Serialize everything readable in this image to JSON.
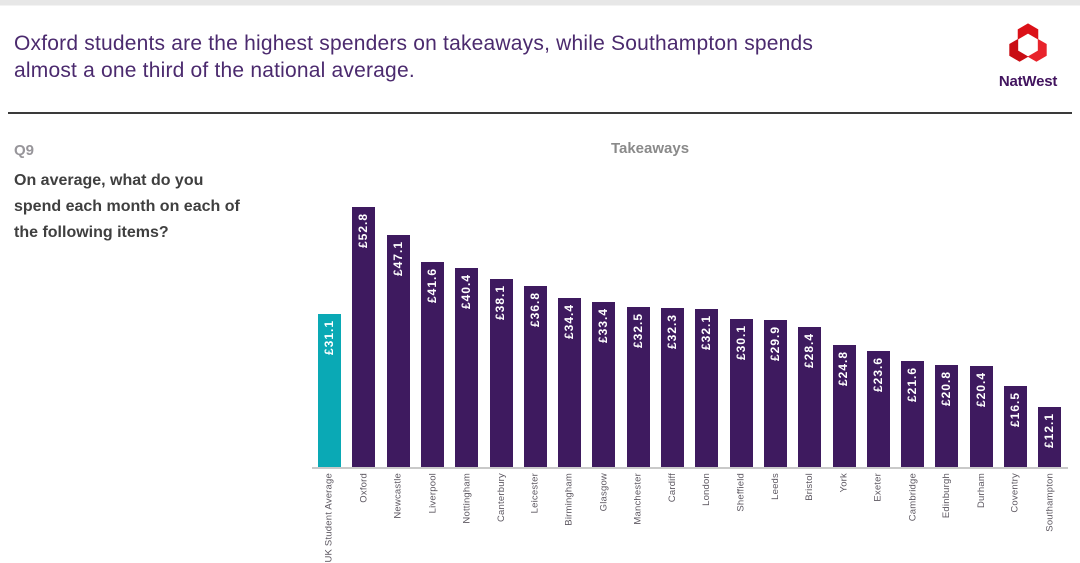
{
  "header": {
    "title_lines": [
      "Oxford students are the highest spenders on takeaways, while Southampton spends",
      "almost a one third of the national average."
    ],
    "brand": "NatWest"
  },
  "question": {
    "number": "Q9",
    "text": "On average, what do you spend each month on each of the following items?"
  },
  "chart_data": {
    "type": "bar",
    "title": "Takeaways",
    "categories": [
      "UK Student Average",
      "Oxford",
      "Newcastle",
      "Liverpool",
      "Nottingham",
      "Canterbury",
      "Leicester",
      "Birmingham",
      "Glasgow",
      "Manchester",
      "Cardiff",
      "London",
      "Sheffield",
      "Leeds",
      "Bristol",
      "York",
      "Exeter",
      "Cambridge",
      "Edinburgh",
      "Durham",
      "Coventry",
      "Southampton"
    ],
    "values": [
      31.1,
      52.8,
      47.1,
      41.6,
      40.4,
      38.1,
      36.8,
      34.4,
      33.4,
      32.5,
      32.3,
      32.1,
      30.1,
      29.9,
      28.4,
      24.8,
      23.6,
      21.6,
      20.8,
      20.4,
      16.5,
      12.1
    ],
    "value_prefix": "£",
    "value_labels": [
      "£31.1",
      "£52.8",
      "£47.1",
      "£41.6",
      "£40.4",
      "£38.1",
      "£36.8",
      "£34.4",
      "£33.4",
      "£32.5",
      "£32.3",
      "£32.1",
      "£30.1",
      "£29.9",
      "£28.4",
      "£24.8",
      "£23.6",
      "£21.6",
      "£20.8",
      "£20.4",
      "£16.5",
      "£12.1"
    ],
    "highlight_index": 0,
    "bar_color": "#3e1a5f",
    "highlight_color": "#0aa9b5",
    "ylim": [
      0,
      55
    ],
    "grid": false,
    "xlabel": "",
    "ylabel": "",
    "legend": null,
    "tick_label_rotation": 90
  },
  "colors": {
    "title_text": "#4b2a6e",
    "brand_text": "#42145f",
    "logo_red": "#db1118",
    "divider": "#3a3a3a",
    "question_number": "#97959a",
    "question_text": "#3f3f3f",
    "chart_title": "#8a8a8a",
    "axis_line": "#c9c9c9",
    "category_label": "#5c5760"
  }
}
